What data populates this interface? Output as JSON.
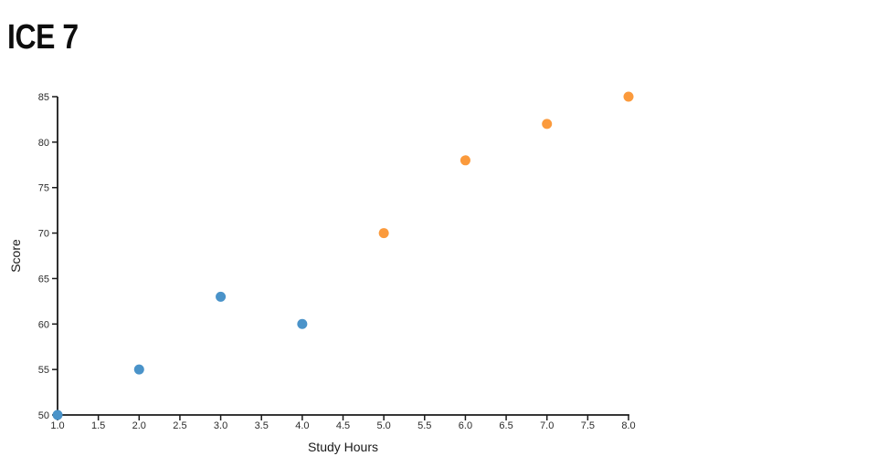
{
  "page": {
    "background": "#ffffff"
  },
  "chart_data": {
    "type": "scatter",
    "title": "ICE 7",
    "xlabel": "Study Hours",
    "ylabel": "Score",
    "xlim": [
      1.0,
      8.0
    ],
    "ylim": [
      50,
      85
    ],
    "x_ticks": [
      1.0,
      1.5,
      2.0,
      2.5,
      3.0,
      3.5,
      4.0,
      4.5,
      5.0,
      5.5,
      6.0,
      6.5,
      7.0,
      7.5,
      8.0
    ],
    "x_tick_labels": [
      "1.0",
      "1.5",
      "2.0",
      "2.5",
      "3.0",
      "3.5",
      "4.0",
      "4.5",
      "5.0",
      "5.5",
      "6.0",
      "6.5",
      "7.0",
      "7.5",
      "8.0"
    ],
    "y_ticks": [
      50,
      55,
      60,
      65,
      70,
      75,
      80,
      85
    ],
    "y_tick_labels": [
      "50",
      "55",
      "60",
      "65",
      "70",
      "75",
      "80",
      "85"
    ],
    "grid": false,
    "legend": false,
    "marker": {
      "shape": "circle",
      "radius": 5.5
    },
    "axis_color": "#1a1a1a",
    "tick_label_color": "#2b2b2b",
    "series": [
      {
        "name": "blue-points",
        "color": "#4a93c9",
        "points": [
          [
            1.0,
            50
          ],
          [
            2.0,
            55
          ],
          [
            3.0,
            63
          ],
          [
            4.0,
            60
          ]
        ]
      },
      {
        "name": "orange-points",
        "color": "#fb9a3c",
        "points": [
          [
            5.0,
            70
          ],
          [
            6.0,
            78
          ],
          [
            7.0,
            82
          ],
          [
            8.0,
            85
          ]
        ]
      }
    ]
  }
}
